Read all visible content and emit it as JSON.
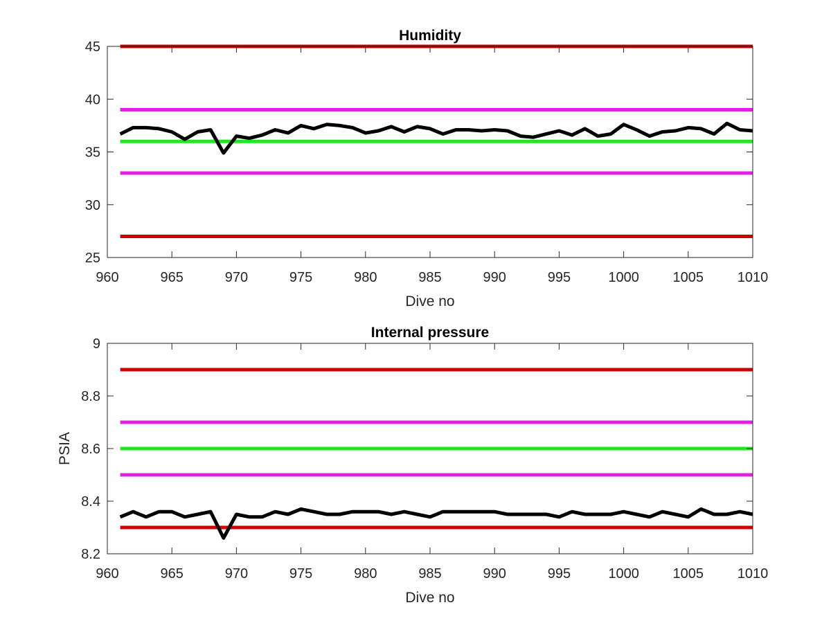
{
  "chart_data": [
    {
      "type": "line",
      "title": "Humidity",
      "xlabel": "Dive no",
      "ylabel": "",
      "xlim": [
        960,
        1010
      ],
      "ylim": [
        25,
        45
      ],
      "xticks": [
        960,
        965,
        970,
        975,
        980,
        985,
        990,
        995,
        1000,
        1005,
        1010
      ],
      "yticks": [
        25,
        30,
        35,
        40,
        45
      ],
      "xtick_labels": [
        "960",
        "965",
        "970",
        "975",
        "980",
        "985",
        "990",
        "995",
        "1000",
        "1005",
        "1010"
      ],
      "ytick_labels": [
        "25",
        "30",
        "35",
        "40",
        "45"
      ],
      "grid": false,
      "reference_lines": [
        {
          "y": 45,
          "color": "#cc0000"
        },
        {
          "y": 39,
          "color": "#e020e0"
        },
        {
          "y": 36,
          "color": "#1ee81e"
        },
        {
          "y": 33,
          "color": "#e020e0"
        },
        {
          "y": 27,
          "color": "#cc0000"
        }
      ],
      "series": [
        {
          "color": "#000000",
          "x": [
            961,
            962,
            963,
            964,
            965,
            966,
            967,
            968,
            969,
            970,
            971,
            972,
            973,
            974,
            975,
            976,
            977,
            978,
            979,
            980,
            981,
            982,
            983,
            984,
            985,
            986,
            987,
            988,
            989,
            990,
            991,
            992,
            993,
            994,
            995,
            996,
            997,
            998,
            999,
            1000,
            1001,
            1002,
            1003,
            1004,
            1005,
            1006,
            1007,
            1008,
            1009,
            1010
          ],
          "y": [
            36.7,
            37.3,
            37.3,
            37.2,
            36.9,
            36.2,
            36.9,
            37.1,
            34.9,
            36.5,
            36.3,
            36.6,
            37.1,
            36.8,
            37.5,
            37.2,
            37.6,
            37.5,
            37.3,
            36.8,
            37.0,
            37.4,
            36.9,
            37.4,
            37.2,
            36.7,
            37.1,
            37.1,
            37.0,
            37.1,
            37.0,
            36.5,
            36.4,
            36.7,
            37.0,
            36.6,
            37.2,
            36.5,
            36.7,
            37.6,
            37.1,
            36.5,
            36.9,
            37.0,
            37.3,
            37.2,
            36.7,
            37.7,
            37.1,
            37.0
          ]
        }
      ]
    },
    {
      "type": "line",
      "title": "Internal pressure",
      "xlabel": "Dive no",
      "ylabel": "PSIA",
      "xlim": [
        960,
        1010
      ],
      "ylim": [
        8.2,
        9.0
      ],
      "xticks": [
        960,
        965,
        970,
        975,
        980,
        985,
        990,
        995,
        1000,
        1005,
        1010
      ],
      "yticks": [
        8.2,
        8.4,
        8.6,
        8.8,
        9.0
      ],
      "xtick_labels": [
        "960",
        "965",
        "970",
        "975",
        "980",
        "985",
        "990",
        "995",
        "1000",
        "1005",
        "1010"
      ],
      "ytick_labels": [
        "8.2",
        "8.4",
        "8.6",
        "8.8",
        "9"
      ],
      "grid": false,
      "reference_lines": [
        {
          "y": 8.9,
          "color": "#cc0000"
        },
        {
          "y": 8.7,
          "color": "#e020e0"
        },
        {
          "y": 8.6,
          "color": "#1ee81e"
        },
        {
          "y": 8.5,
          "color": "#e020e0"
        },
        {
          "y": 8.3,
          "color": "#cc0000"
        }
      ],
      "series": [
        {
          "color": "#000000",
          "x": [
            961,
            962,
            963,
            964,
            965,
            966,
            967,
            968,
            969,
            970,
            971,
            972,
            973,
            974,
            975,
            976,
            977,
            978,
            979,
            980,
            981,
            982,
            983,
            984,
            985,
            986,
            987,
            988,
            989,
            990,
            991,
            992,
            993,
            994,
            995,
            996,
            997,
            998,
            999,
            1000,
            1001,
            1002,
            1003,
            1004,
            1005,
            1006,
            1007,
            1008,
            1009,
            1010
          ],
          "y": [
            8.34,
            8.36,
            8.34,
            8.36,
            8.36,
            8.34,
            8.35,
            8.36,
            8.26,
            8.35,
            8.34,
            8.34,
            8.36,
            8.35,
            8.37,
            8.36,
            8.35,
            8.35,
            8.36,
            8.36,
            8.36,
            8.35,
            8.36,
            8.35,
            8.34,
            8.36,
            8.36,
            8.36,
            8.36,
            8.36,
            8.35,
            8.35,
            8.35,
            8.35,
            8.34,
            8.36,
            8.35,
            8.35,
            8.35,
            8.36,
            8.35,
            8.34,
            8.36,
            8.35,
            8.34,
            8.37,
            8.35,
            8.35,
            8.36,
            8.35
          ]
        }
      ]
    }
  ]
}
